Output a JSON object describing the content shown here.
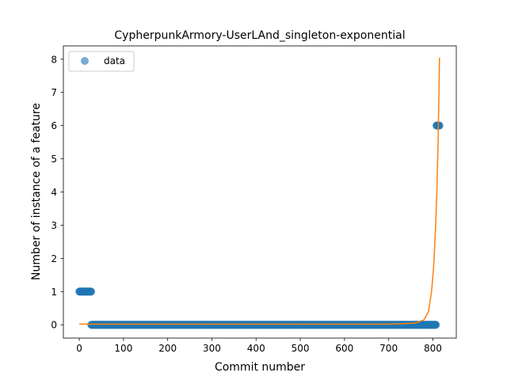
{
  "chart_data": {
    "type": "scatter",
    "title": "CypherpunkArmory-UserLAnd_singleton-exponential",
    "xlabel": "Commit number",
    "ylabel": "Number of instance of a feature",
    "xlim": [
      -36,
      853
    ],
    "ylim": [
      -0.4,
      8.4
    ],
    "x_ticks": [
      "0",
      "100",
      "200",
      "300",
      "400",
      "500",
      "600",
      "700",
      "800"
    ],
    "y_ticks": [
      "0",
      "1",
      "2",
      "3",
      "4",
      "5",
      "6",
      "7",
      "8"
    ],
    "grid": false,
    "legend": {
      "position": "top-left",
      "entries": [
        "data"
      ]
    },
    "series": [
      {
        "name": "data",
        "kind": "points",
        "color": "#1f77b4",
        "segments": [
          {
            "x_start": 0,
            "x_end": 27,
            "y": 1
          },
          {
            "x_start": 27,
            "x_end": 807,
            "y": 0
          },
          {
            "x_start": 808,
            "x_end": 815,
            "y": 6
          }
        ]
      },
      {
        "kind": "fit-line",
        "color": "#ff7f0e",
        "model": "exponential",
        "points": [
          [
            0,
            0.02
          ],
          [
            700,
            0.02
          ],
          [
            760,
            0.05
          ],
          [
            780,
            0.15
          ],
          [
            790,
            0.4
          ],
          [
            797,
            1.0
          ],
          [
            802,
            1.8
          ],
          [
            806,
            2.9
          ],
          [
            809,
            4.0
          ],
          [
            812,
            5.6
          ],
          [
            815,
            8.05
          ]
        ]
      }
    ]
  }
}
